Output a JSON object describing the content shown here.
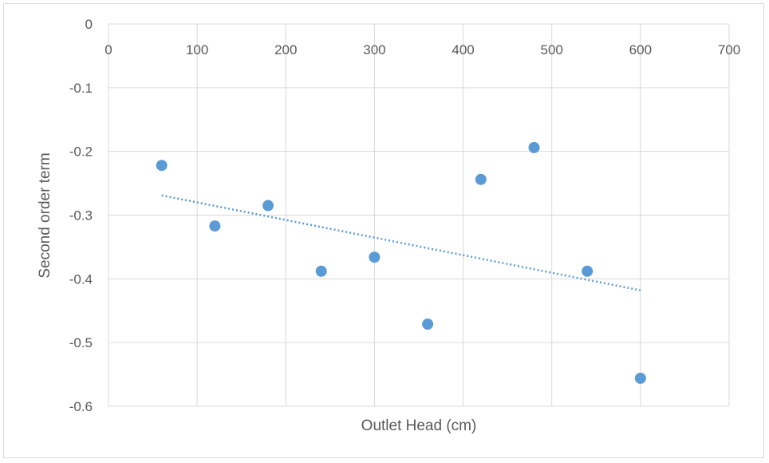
{
  "chart_data": {
    "type": "scatter",
    "title": "",
    "xlabel": "Outlet Head (cm)",
    "ylabel": "Second order term",
    "xlim": [
      0,
      700
    ],
    "ylim": [
      -0.6,
      0
    ],
    "x_ticks": [
      0,
      100,
      200,
      300,
      400,
      500,
      600,
      700
    ],
    "y_ticks": [
      0,
      -0.1,
      -0.2,
      -0.3,
      -0.4,
      -0.5,
      -0.6
    ],
    "x_tick_labels": [
      "0",
      "100",
      "200",
      "300",
      "400",
      "500",
      "600",
      "700"
    ],
    "y_tick_labels": [
      "0",
      "-0.1",
      "-0.2",
      "-0.3",
      "-0.4",
      "-0.5",
      "-0.6"
    ],
    "grid": true,
    "legend": "none",
    "series": [
      {
        "color": "#5b9bd5",
        "points": [
          {
            "x": 60,
            "y": -0.222
          },
          {
            "x": 120,
            "y": -0.317
          },
          {
            "x": 180,
            "y": -0.285
          },
          {
            "x": 240,
            "y": -0.388
          },
          {
            "x": 300,
            "y": -0.366
          },
          {
            "x": 360,
            "y": -0.471
          },
          {
            "x": 420,
            "y": -0.244
          },
          {
            "x": 480,
            "y": -0.194
          },
          {
            "x": 540,
            "y": -0.388
          },
          {
            "x": 600,
            "y": -0.556
          }
        ]
      }
    ],
    "trendline": {
      "type": "linear",
      "style": "dotted",
      "color": "#5b9bd5",
      "x": [
        60,
        600
      ],
      "y": [
        -0.269,
        -0.418
      ]
    }
  }
}
